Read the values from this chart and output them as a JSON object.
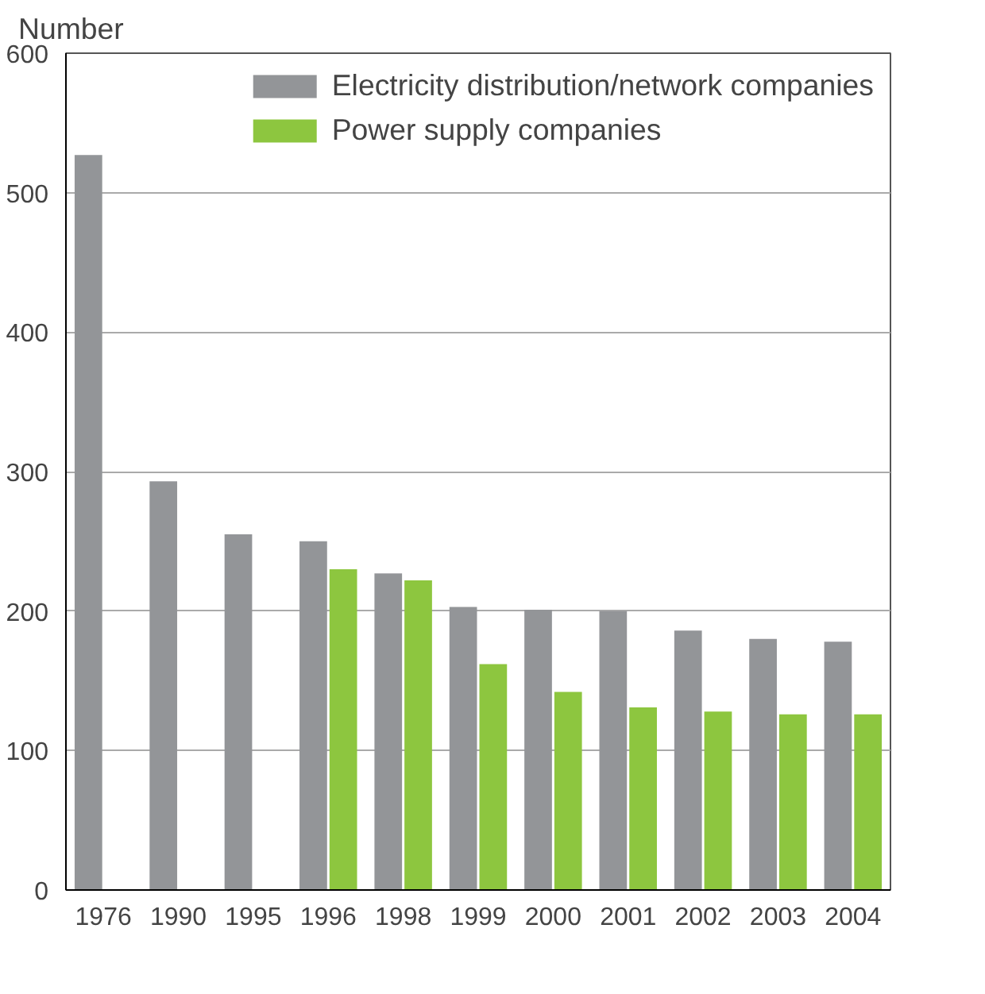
{
  "chart_data": {
    "type": "bar",
    "ylabel": "Number",
    "categories": [
      "1976",
      "1990",
      "1995",
      "1996",
      "1998",
      "1999",
      "2000",
      "2001",
      "2002",
      "2003",
      "2004"
    ],
    "series": [
      {
        "name": "Electricity distribution/network companies",
        "color": "#939598",
        "values": [
          527,
          293,
          255,
          250,
          227,
          203,
          201,
          200,
          186,
          180,
          178
        ]
      },
      {
        "name": "Power supply companies",
        "color": "#8dc63f",
        "values": [
          null,
          null,
          null,
          230,
          222,
          162,
          142,
          131,
          128,
          126,
          126
        ]
      }
    ],
    "ylim": [
      0,
      600
    ],
    "yticks": [
      0,
      100,
      200,
      300,
      400,
      500,
      600
    ],
    "grid": "y",
    "legend": "top right"
  }
}
